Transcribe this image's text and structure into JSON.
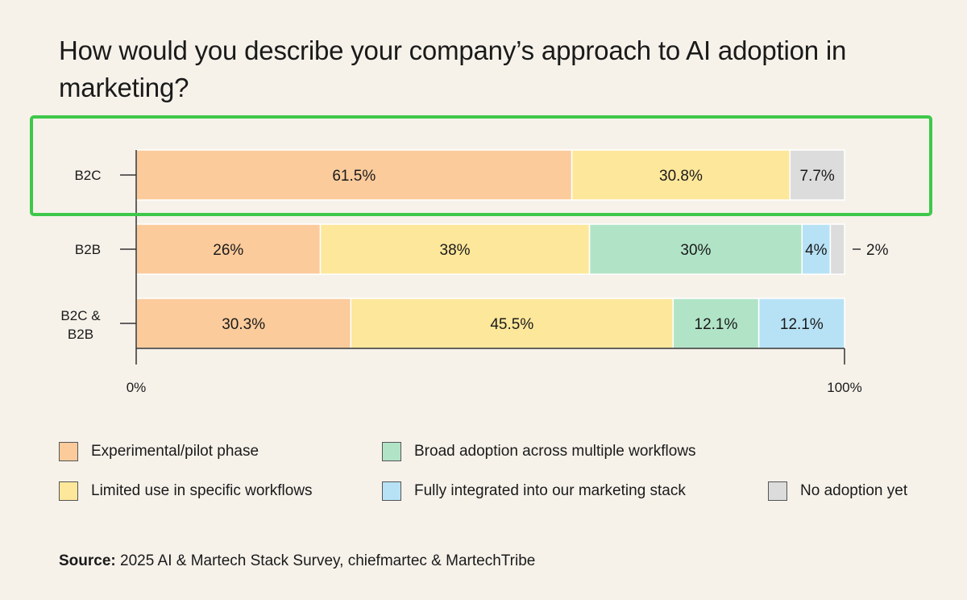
{
  "chart_data": {
    "type": "bar",
    "orientation": "horizontal-stacked-100",
    "title": "How would you describe your company’s approach to AI adoption in marketing?",
    "categories": [
      "B2C",
      "B2B",
      "B2C & B2B"
    ],
    "series": [
      {
        "name": "Experimental/pilot phase",
        "values": [
          61.5,
          26,
          30.3
        ],
        "labels": [
          "61.5%",
          "26%",
          "30.3%"
        ]
      },
      {
        "name": "Limited use in specific workflows",
        "values": [
          30.8,
          38,
          45.5
        ],
        "labels": [
          "30.8%",
          "38%",
          "45.5%"
        ]
      },
      {
        "name": "Broad adoption across multiple workflows",
        "values": [
          0,
          30,
          12.1
        ],
        "labels": [
          "",
          "30%",
          "12.1%"
        ]
      },
      {
        "name": "Fully integrated into our marketing stack",
        "values": [
          0,
          4,
          12.1
        ],
        "labels": [
          "",
          "4%",
          "12.1%"
        ]
      },
      {
        "name": "No adoption yet",
        "values": [
          7.7,
          2,
          0
        ],
        "labels": [
          "7.7%",
          "",
          ""
        ]
      }
    ],
    "outside_labels": [
      {
        "category": "B2B",
        "text": "2%"
      }
    ],
    "xlim": [
      0,
      100
    ],
    "x_tick_labels": [
      "0%",
      "100%"
    ],
    "highlighted_category": "B2C",
    "grid": false,
    "legend_position": "bottom"
  },
  "colors": {
    "background": "#f6f2ea",
    "series": [
      "#fccb9c",
      "#fde79a",
      "#b1e4c7",
      "#b7e2f6",
      "#dcdcdc"
    ],
    "highlight_box": "#3ec84a",
    "axis": "#333333"
  },
  "legend": [
    {
      "label": "Experimental/pilot phase",
      "color": "#fccb9c"
    },
    {
      "label": "Limited use in specific workflows",
      "color": "#fde79a"
    },
    {
      "label": "Broad adoption across multiple workflows",
      "color": "#b1e4c7"
    },
    {
      "label": "Fully integrated into our marketing stack",
      "color": "#b7e2f6"
    },
    {
      "label": "No adoption yet",
      "color": "#dcdcdc"
    }
  ],
  "source": {
    "label": "Source:",
    "text": " 2025 AI & Martech Stack Survey, chiefmartec & MartechTribe"
  }
}
